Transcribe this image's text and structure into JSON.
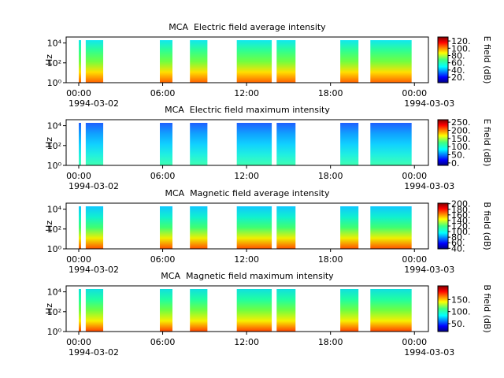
{
  "chart_data": [
    {
      "type": "spectrogram",
      "title": "MCA  Electric field average intensity",
      "ylabel": "Hz",
      "yscale": "log",
      "ylim": [
        1,
        40000
      ],
      "yticks": [
        {
          "value": 1,
          "label": "10⁰"
        },
        {
          "value": 100,
          "label": "10²"
        },
        {
          "value": 10000,
          "label": "10⁴"
        }
      ],
      "xlim": [
        -0.9,
        25
      ],
      "xticks": [
        {
          "value": 0,
          "label": "00:00"
        },
        {
          "value": 6,
          "label": "06:00"
        },
        {
          "value": 12,
          "label": "12:00"
        },
        {
          "value": 18,
          "label": "18:00"
        },
        {
          "value": 24,
          "label": "00:00"
        }
      ],
      "xdates": [
        {
          "value": 0,
          "label": "1994-03-02"
        },
        {
          "value": 24,
          "label": "1994-03-03"
        }
      ],
      "segments": [
        [
          0,
          0.17
        ],
        [
          0.5,
          1.75
        ],
        [
          5.8,
          6.7
        ],
        [
          7.95,
          9.2
        ],
        [
          11.3,
          13.8
        ],
        [
          14.15,
          15.5
        ],
        [
          18.7,
          20.0
        ],
        [
          20.85,
          23.8
        ]
      ],
      "palette": [
        "#10e8f0",
        "#30ff90",
        "#70ff40",
        "#ffe000",
        "#ff6000"
      ],
      "colorbar_label": "E field (dB)",
      "clim": [
        5,
        131
      ],
      "cticks": [
        {
          "value": 20,
          "label": "20."
        },
        {
          "value": 40,
          "label": "40."
        },
        {
          "value": 60,
          "label": "60."
        },
        {
          "value": 80,
          "label": "80."
        },
        {
          "value": 100,
          "label": "100."
        },
        {
          "value": 120,
          "label": "120."
        }
      ]
    },
    {
      "type": "spectrogram",
      "title": "MCA  Electric field maximum intensity",
      "ylabel": "Hz",
      "yscale": "log",
      "ylim": [
        1,
        40000
      ],
      "yticks": [
        {
          "value": 1,
          "label": "10⁰"
        },
        {
          "value": 100,
          "label": "10²"
        },
        {
          "value": 10000,
          "label": "10⁴"
        }
      ],
      "xlim": [
        -0.9,
        25
      ],
      "xticks": [
        {
          "value": 0,
          "label": "00:00"
        },
        {
          "value": 6,
          "label": "06:00"
        },
        {
          "value": 12,
          "label": "12:00"
        },
        {
          "value": 18,
          "label": "18:00"
        },
        {
          "value": 24,
          "label": "00:00"
        }
      ],
      "xdates": [
        {
          "value": 0,
          "label": "1994-03-02"
        },
        {
          "value": 24,
          "label": "1994-03-03"
        }
      ],
      "segments": [
        [
          0,
          0.17
        ],
        [
          0.5,
          1.75
        ],
        [
          5.8,
          6.7
        ],
        [
          7.95,
          9.2
        ],
        [
          11.3,
          13.8
        ],
        [
          14.15,
          15.5
        ],
        [
          18.7,
          20.0
        ],
        [
          20.85,
          23.8
        ]
      ],
      "palette": [
        "#2060ff",
        "#10a0ff",
        "#10d0ff",
        "#20f0e0",
        "#40ffb0"
      ],
      "colorbar_label": "E field (dB)",
      "clim": [
        -15,
        265
      ],
      "cticks": [
        {
          "value": 0,
          "label": "0."
        },
        {
          "value": 50,
          "label": "50."
        },
        {
          "value": 100,
          "label": "100."
        },
        {
          "value": 150,
          "label": "150."
        },
        {
          "value": 200,
          "label": "200."
        },
        {
          "value": 250,
          "label": "250."
        }
      ]
    },
    {
      "type": "spectrogram",
      "title": "MCA  Magnetic field average intensity",
      "ylabel": "Hz",
      "yscale": "log",
      "ylim": [
        1,
        40000
      ],
      "yticks": [
        {
          "value": 1,
          "label": "10⁰"
        },
        {
          "value": 100,
          "label": "10²"
        },
        {
          "value": 10000,
          "label": "10⁴"
        }
      ],
      "xlim": [
        -0.9,
        25
      ],
      "xticks": [
        {
          "value": 0,
          "label": "00:00"
        },
        {
          "value": 6,
          "label": "06:00"
        },
        {
          "value": 12,
          "label": "12:00"
        },
        {
          "value": 18,
          "label": "18:00"
        },
        {
          "value": 24,
          "label": "00:00"
        }
      ],
      "xdates": [
        {
          "value": 0,
          "label": "1994-03-02"
        },
        {
          "value": 24,
          "label": "1994-03-03"
        }
      ],
      "segments": [
        [
          0,
          0.17
        ],
        [
          0.5,
          1.75
        ],
        [
          5.8,
          6.7
        ],
        [
          7.95,
          9.2
        ],
        [
          11.3,
          13.8
        ],
        [
          14.15,
          15.5
        ],
        [
          18.7,
          20.0
        ],
        [
          20.85,
          23.8
        ]
      ],
      "palette": [
        "#10c8ff",
        "#10f0d0",
        "#40ff70",
        "#f0f000",
        "#ff5000"
      ],
      "colorbar_label": "B field (dB)",
      "clim": [
        38,
        202
      ],
      "cticks": [
        {
          "value": 40,
          "label": "40."
        },
        {
          "value": 60,
          "label": "60."
        },
        {
          "value": 80,
          "label": "80."
        },
        {
          "value": 100,
          "label": "100."
        },
        {
          "value": 120,
          "label": "120."
        },
        {
          "value": 140,
          "label": "140."
        },
        {
          "value": 160,
          "label": "160."
        },
        {
          "value": 180,
          "label": "180."
        },
        {
          "value": 200,
          "label": "200."
        }
      ]
    },
    {
      "type": "spectrogram",
      "title": "MCA  Magnetic field maximum intensity",
      "ylabel": "Hz",
      "yscale": "log",
      "ylim": [
        1,
        40000
      ],
      "yticks": [
        {
          "value": 1,
          "label": "10⁰"
        },
        {
          "value": 100,
          "label": "10²"
        },
        {
          "value": 10000,
          "label": "10⁴"
        }
      ],
      "xlim": [
        -0.9,
        25
      ],
      "xticks": [
        {
          "value": 0,
          "label": "00:00"
        },
        {
          "value": 6,
          "label": "06:00"
        },
        {
          "value": 12,
          "label": "12:00"
        },
        {
          "value": 18,
          "label": "18:00"
        },
        {
          "value": 24,
          "label": "00:00"
        }
      ],
      "xdates": [
        {
          "value": 0,
          "label": "1994-03-02"
        },
        {
          "value": 24,
          "label": "1994-03-03"
        }
      ],
      "segments": [
        [
          0,
          0.17
        ],
        [
          0.5,
          1.75
        ],
        [
          5.8,
          6.7
        ],
        [
          7.95,
          9.2
        ],
        [
          11.3,
          13.8
        ],
        [
          14.15,
          15.5
        ],
        [
          18.7,
          20.0
        ],
        [
          20.85,
          23.8
        ]
      ],
      "palette": [
        "#10e0e0",
        "#20ffa0",
        "#70ff40",
        "#f8f000",
        "#ff4000"
      ],
      "colorbar_label": "B field (dB)",
      "clim": [
        17,
        207
      ],
      "cticks": [
        {
          "value": 50,
          "label": "50."
        },
        {
          "value": 100,
          "label": "100."
        },
        {
          "value": 150,
          "label": "150."
        }
      ]
    }
  ]
}
